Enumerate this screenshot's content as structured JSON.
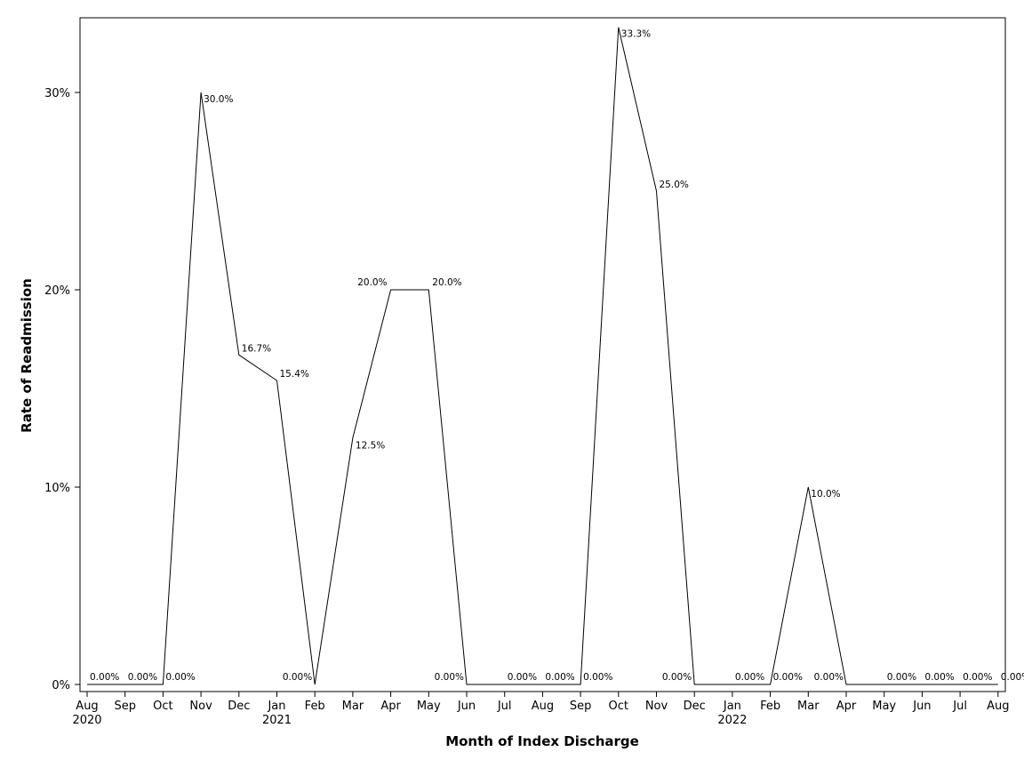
{
  "chart_data": {
    "type": "line",
    "xlabel": "Month of Index Discharge",
    "ylabel": "Rate of Readmission",
    "ylim": [
      0,
      0.335
    ],
    "y_ticks": [
      {
        "value": 0,
        "label": "0%"
      },
      {
        "value": 0.1,
        "label": "10%"
      },
      {
        "value": 0.2,
        "label": "20%"
      },
      {
        "value": 0.3,
        "label": "30%"
      }
    ],
    "x_tick_labels": [
      "Aug",
      "Sep",
      "Oct",
      "Nov",
      "Dec",
      "Jan",
      "Feb",
      "Mar",
      "Apr",
      "May",
      "Jun",
      "Jul",
      "Aug",
      "Sep",
      "Oct",
      "Nov",
      "Dec",
      "Jan",
      "Feb",
      "Mar",
      "Apr",
      "May",
      "Jun",
      "Jul",
      "Aug"
    ],
    "x_year_labels": [
      {
        "index": 0,
        "label": "2020"
      },
      {
        "index": 5,
        "label": "2021"
      },
      {
        "index": 17,
        "label": "2022"
      }
    ],
    "grid": false,
    "series": [
      {
        "values": [
          0,
          0,
          0,
          0.3,
          0.167,
          0.154,
          0,
          0.125,
          0.2,
          0.2,
          0,
          0,
          0,
          0,
          0.333,
          0.25,
          0,
          0,
          0,
          0.1,
          0,
          0,
          0,
          0,
          0
        ],
        "data_labels": [
          "0.00%",
          "0.00%",
          "0.00%",
          "30.0%",
          "16.7%",
          "15.4%",
          "0.00%",
          "12.5%",
          "20.0%",
          "20.0%",
          "0.00%",
          "0.00%",
          "0.00%",
          "0.00%",
          "33.3%",
          "25.0%",
          "0.00%",
          "0.00%",
          "0.00%",
          "10.0%",
          "0.00%",
          "0.00%",
          "0.00%",
          "0.00%",
          "0.00%"
        ]
      }
    ]
  }
}
